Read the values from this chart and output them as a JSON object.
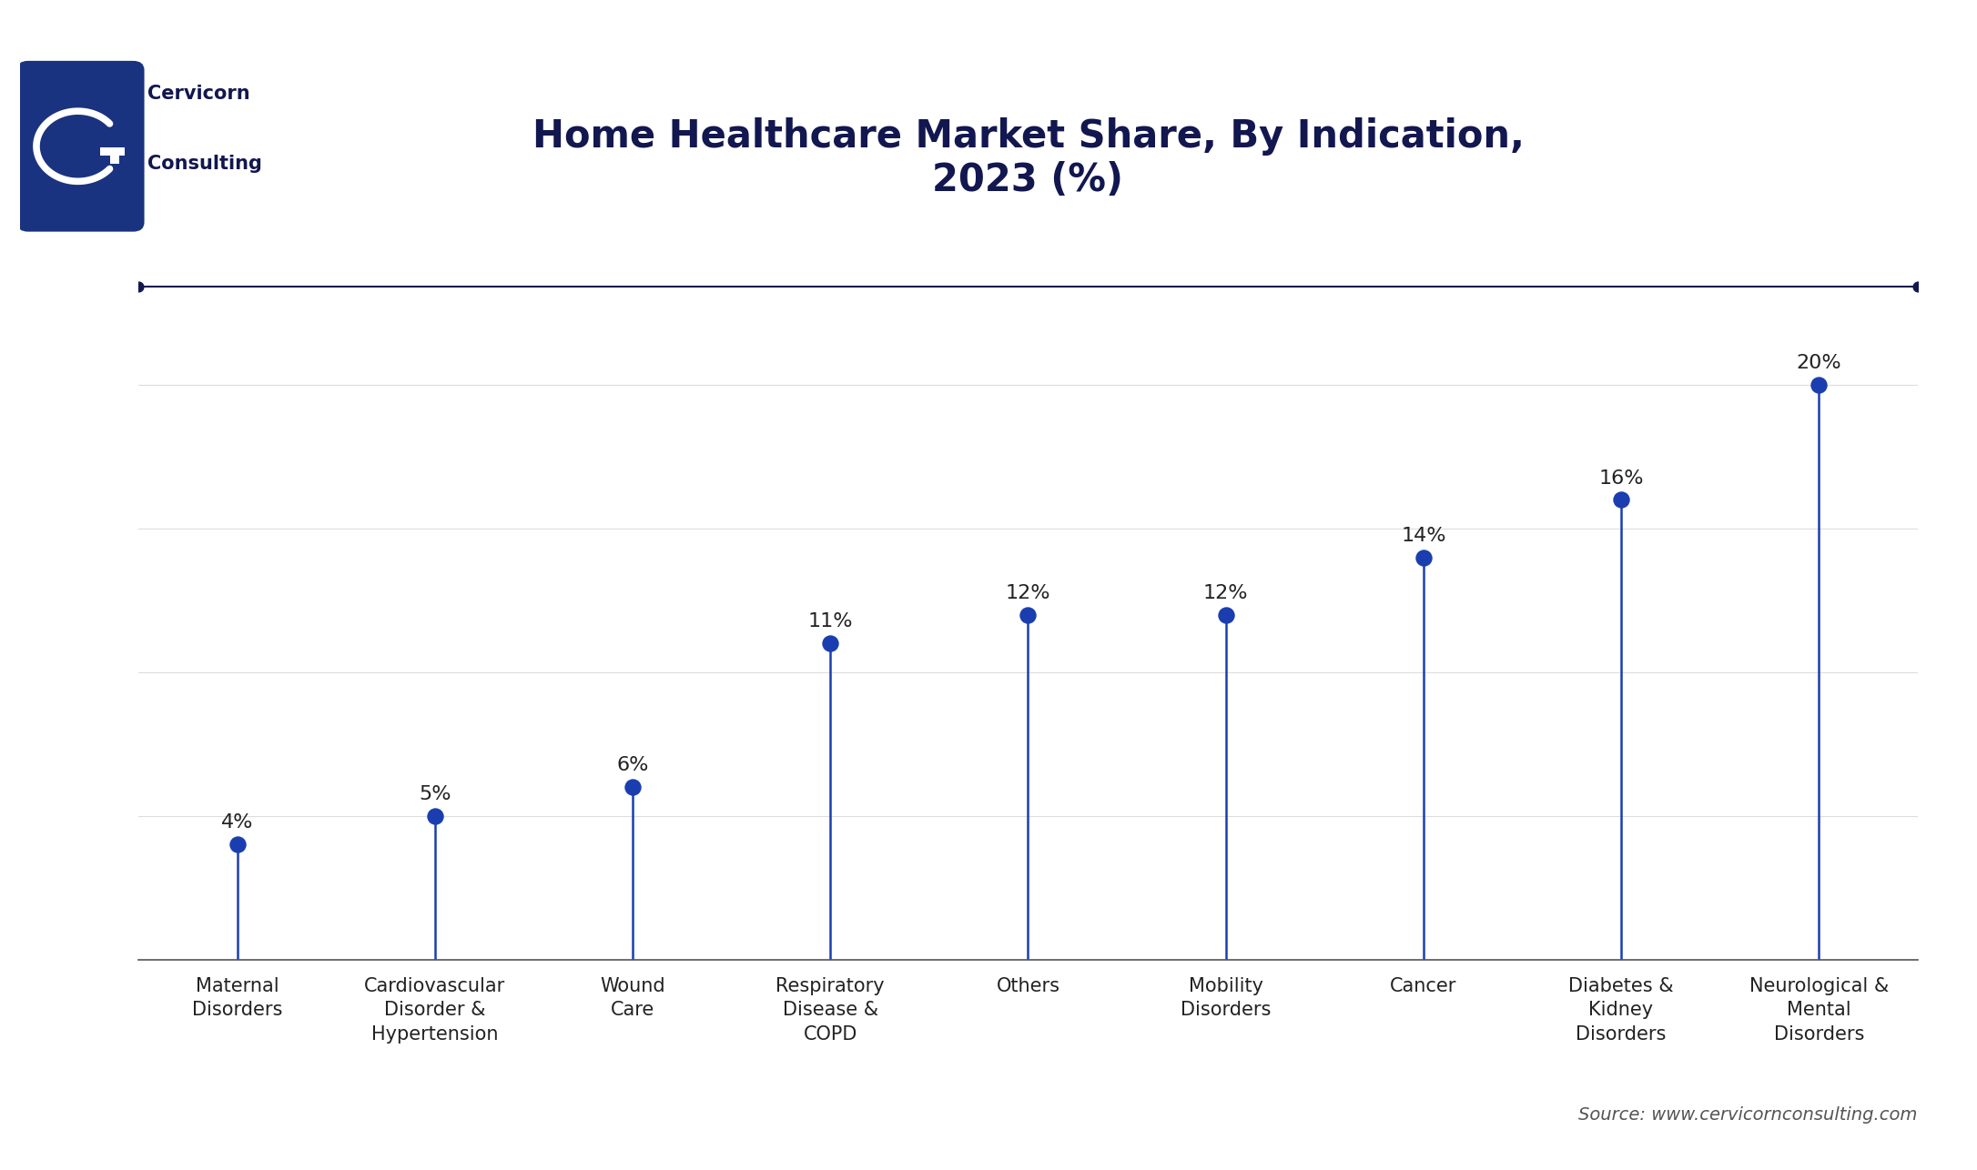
{
  "title": "Home Healthcare Market Share, By Indication,\n2023 (%)",
  "categories": [
    "Maternal\nDisorders",
    "Cardiovascular\nDisorder &\nHypertension",
    "Wound\nCare",
    "Respiratory\nDisease &\nCOPD",
    "Others",
    "Mobility\nDisorders",
    "Cancer",
    "Diabetes &\nKidney\nDisorders",
    "Neurological &\nMental\nDisorders"
  ],
  "values": [
    4,
    5,
    6,
    11,
    12,
    12,
    14,
    16,
    20
  ],
  "dot_color": "#1a3eaf",
  "line_color": "#1a3eaf",
  "title_color": "#12174f",
  "label_color": "#222222",
  "background_color": "#ffffff",
  "grid_color": "#dddddd",
  "top_line_color": "#12174f",
  "source_text": "Source: www.cervicornconsulting.com",
  "logo_color": "#1a3380",
  "company_name_1": "Cervicorn",
  "company_name_2": "Consulting",
  "ylim": [
    0,
    22
  ],
  "figsize": [
    21.72,
    12.86
  ],
  "dpi": 100,
  "dot_size": 150,
  "linewidth": 1.8,
  "title_fontsize": 30,
  "tick_fontsize": 15,
  "annotation_fontsize": 16,
  "source_fontsize": 14,
  "company_fontsize": 18,
  "grid_levels": [
    5,
    10,
    15,
    20
  ]
}
